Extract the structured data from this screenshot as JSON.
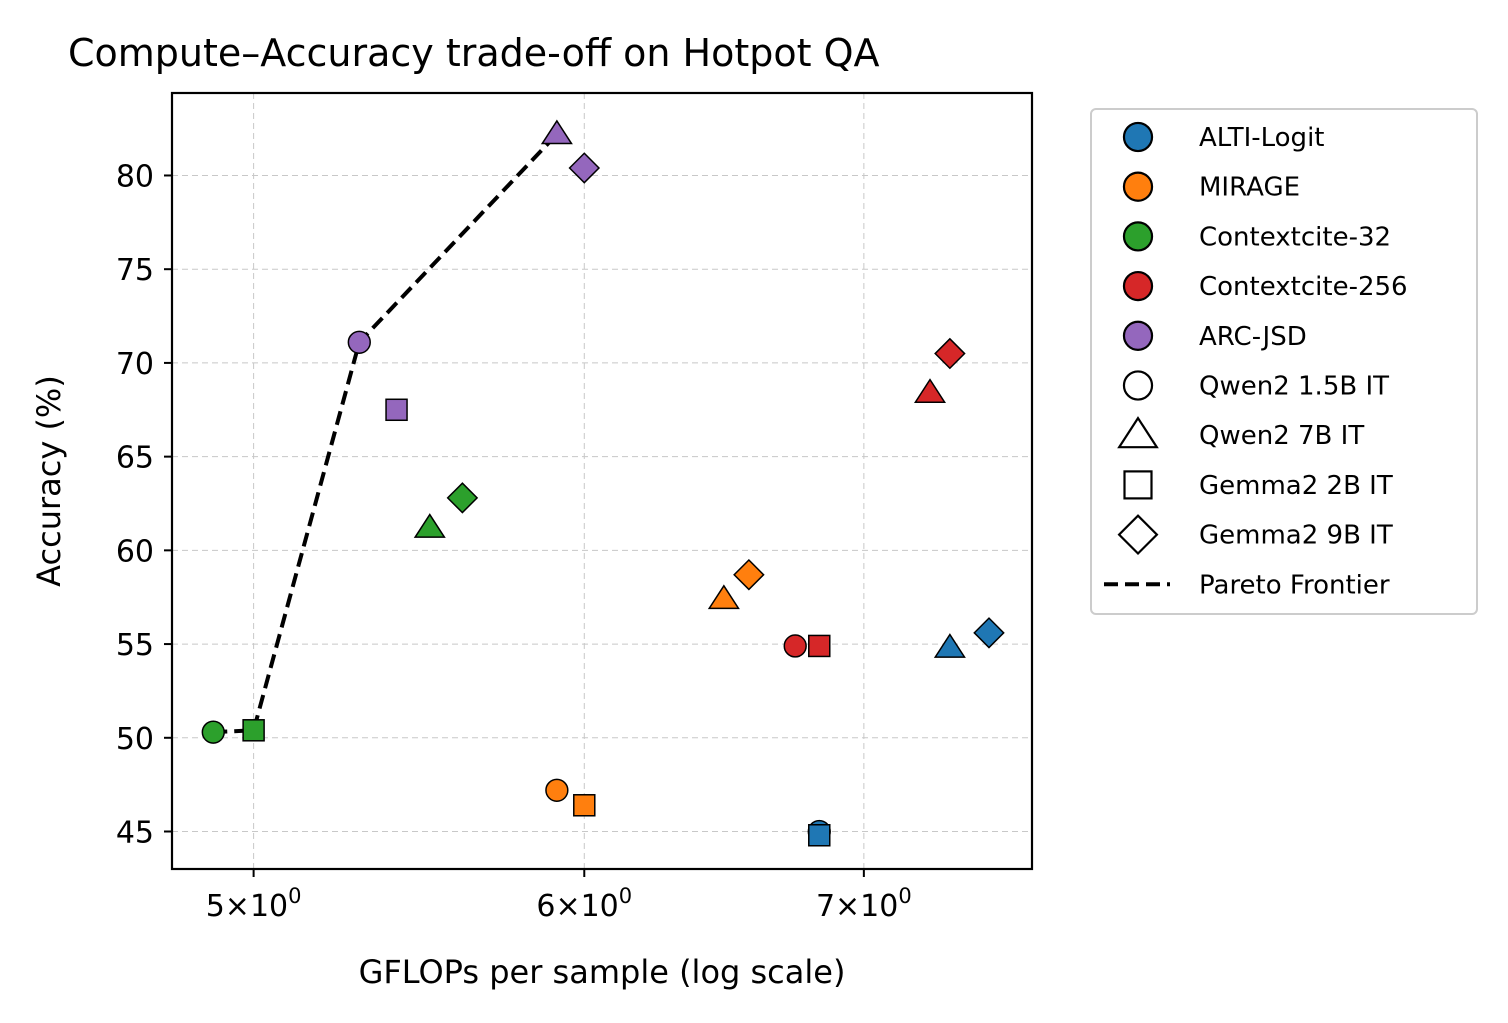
{
  "chart_data": {
    "type": "scatter",
    "title": "Compute–Accuracy trade-off on Hotpot QA",
    "xlabel": "GFLOPs per sample (log scale)",
    "ylabel": "Accuracy (%)",
    "xscale": "log",
    "xlim": [
      4.78,
      7.68
    ],
    "ylim": [
      43,
      84.4
    ],
    "grid": true,
    "legend_position": "outside-right",
    "xticks": [
      {
        "value": 5,
        "base": "5",
        "exp": "0"
      },
      {
        "value": 6,
        "base": "6",
        "exp": "0"
      },
      {
        "value": 7,
        "base": "7",
        "exp": "0"
      }
    ],
    "yticks": [
      {
        "value": 45,
        "label": "45"
      },
      {
        "value": 50,
        "label": "50"
      },
      {
        "value": 55,
        "label": "55"
      },
      {
        "value": 60,
        "label": "60"
      },
      {
        "value": 65,
        "label": "65"
      },
      {
        "value": 70,
        "label": "70"
      },
      {
        "value": 75,
        "label": "75"
      },
      {
        "value": 80,
        "label": "80"
      }
    ],
    "methods": [
      {
        "name": "ALTI-Logit",
        "color": "#1f77b4"
      },
      {
        "name": "MIRAGE",
        "color": "#ff7f0e"
      },
      {
        "name": "Contextcite-32",
        "color": "#2ca02c"
      },
      {
        "name": "Contextcite-256",
        "color": "#d62728"
      },
      {
        "name": "ARC-JSD",
        "color": "#9467bd"
      }
    ],
    "models": [
      {
        "name": "Qwen2 1.5B IT",
        "marker": "circle"
      },
      {
        "name": "Qwen2 7B IT",
        "marker": "triangle"
      },
      {
        "name": "Gemma2 2B IT",
        "marker": "square"
      },
      {
        "name": "Gemma2 9B IT",
        "marker": "diamond"
      }
    ],
    "points": [
      {
        "method": "ALTI-Logit",
        "model": "Qwen2 1.5B IT",
        "x": 6.83,
        "y": 45.0
      },
      {
        "method": "ALTI-Logit",
        "model": "Qwen2 7B IT",
        "x": 7.34,
        "y": 54.8
      },
      {
        "method": "ALTI-Logit",
        "model": "Gemma2 2B IT",
        "x": 6.83,
        "y": 44.8
      },
      {
        "method": "ALTI-Logit",
        "model": "Gemma2 9B IT",
        "x": 7.5,
        "y": 55.6
      },
      {
        "method": "MIRAGE",
        "model": "Qwen2 1.5B IT",
        "x": 5.91,
        "y": 47.2
      },
      {
        "method": "MIRAGE",
        "model": "Qwen2 7B IT",
        "x": 6.48,
        "y": 57.4
      },
      {
        "method": "MIRAGE",
        "model": "Gemma2 2B IT",
        "x": 6.0,
        "y": 46.4
      },
      {
        "method": "MIRAGE",
        "model": "Gemma2 9B IT",
        "x": 6.57,
        "y": 58.7
      },
      {
        "method": "Contextcite-32",
        "model": "Qwen2 1.5B IT",
        "x": 4.89,
        "y": 50.3
      },
      {
        "method": "Contextcite-32",
        "model": "Qwen2 7B IT",
        "x": 5.51,
        "y": 61.2
      },
      {
        "method": "Contextcite-32",
        "model": "Gemma2 2B IT",
        "x": 5.0,
        "y": 50.4
      },
      {
        "method": "Contextcite-32",
        "model": "Gemma2 9B IT",
        "x": 5.61,
        "y": 62.8
      },
      {
        "method": "Contextcite-256",
        "model": "Qwen2 1.5B IT",
        "x": 6.74,
        "y": 54.9
      },
      {
        "method": "Contextcite-256",
        "model": "Qwen2 7B IT",
        "x": 7.26,
        "y": 68.4
      },
      {
        "method": "Contextcite-256",
        "model": "Gemma2 2B IT",
        "x": 6.83,
        "y": 54.9
      },
      {
        "method": "Contextcite-256",
        "model": "Gemma2 9B IT",
        "x": 7.34,
        "y": 70.5
      },
      {
        "method": "ARC-JSD",
        "model": "Qwen2 1.5B IT",
        "x": 5.3,
        "y": 71.1
      },
      {
        "method": "ARC-JSD",
        "model": "Qwen2 7B IT",
        "x": 5.91,
        "y": 82.2
      },
      {
        "method": "ARC-JSD",
        "model": "Gemma2 2B IT",
        "x": 5.41,
        "y": 67.5
      },
      {
        "method": "ARC-JSD",
        "model": "Gemma2 9B IT",
        "x": 6.0,
        "y": 80.4
      }
    ],
    "pareto_frontier": {
      "name": "Pareto Frontier",
      "color": "#000000",
      "x": [
        4.89,
        5.0,
        5.3,
        5.91
      ],
      "y": [
        50.3,
        50.4,
        71.1,
        82.2
      ]
    }
  }
}
